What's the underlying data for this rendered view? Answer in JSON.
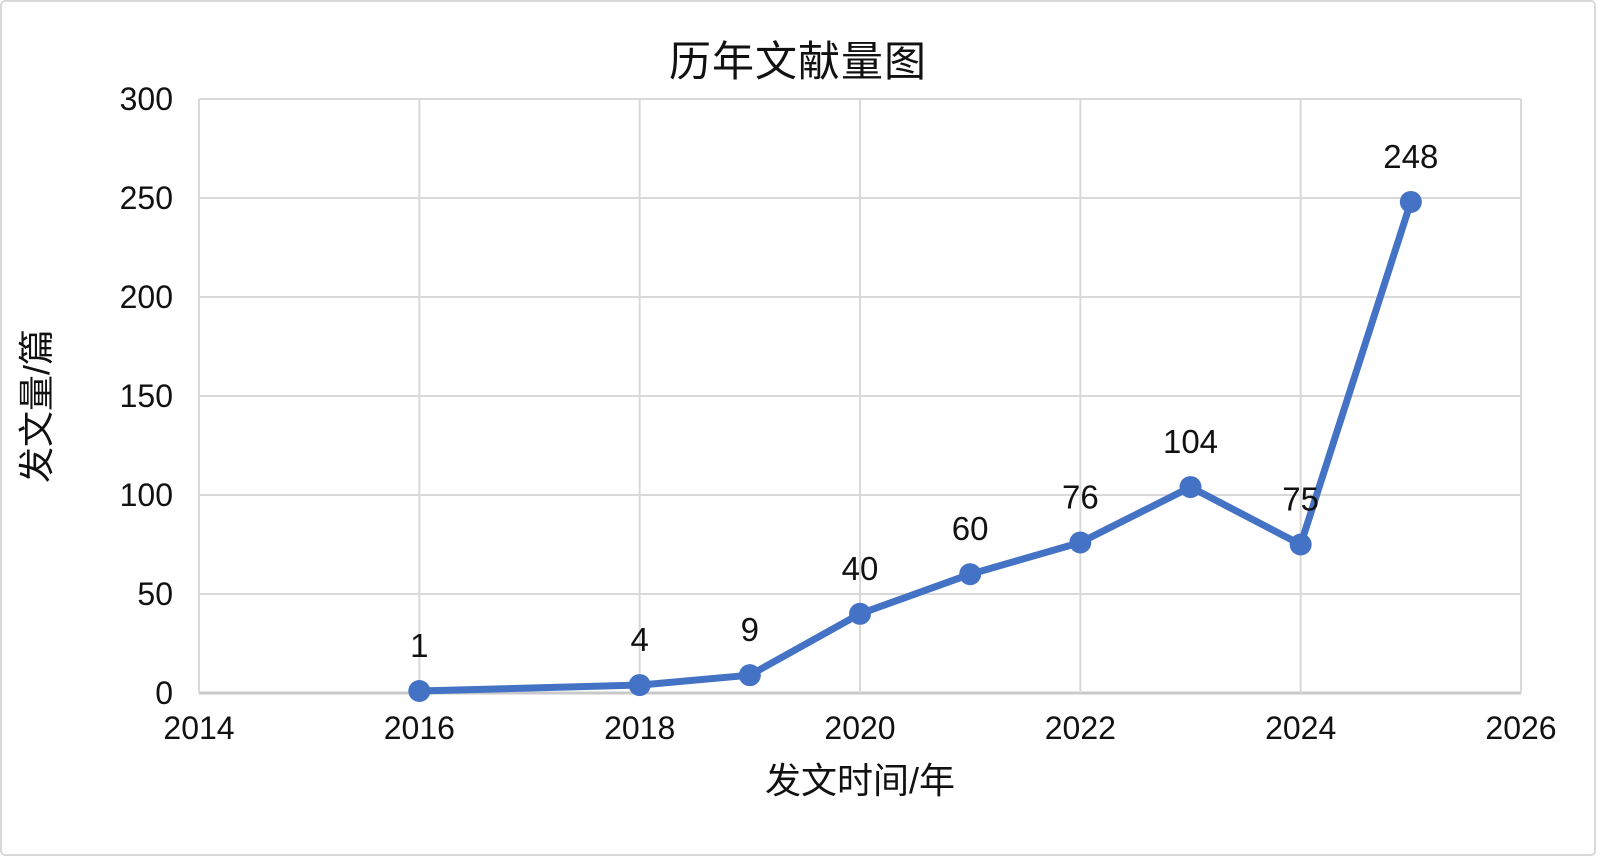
{
  "chart_data": {
    "type": "line",
    "title": "历年文献量图",
    "xlabel": "发文时间/年",
    "ylabel": "发文量/篇",
    "x": [
      2016,
      2018,
      2019,
      2020,
      2021,
      2022,
      2023,
      2024,
      2025
    ],
    "values": [
      1,
      4,
      9,
      40,
      60,
      76,
      104,
      75,
      248
    ],
    "data_labels": [
      "1",
      "4",
      "9",
      "40",
      "60",
      "76",
      "104",
      "75",
      "248"
    ],
    "xlim": [
      2014,
      2026
    ],
    "ylim": [
      0,
      300
    ],
    "xticks": [
      2014,
      2016,
      2018,
      2020,
      2022,
      2024,
      2026
    ],
    "yticks": [
      0,
      50,
      100,
      150,
      200,
      250,
      300
    ],
    "grid": true,
    "legend": "none",
    "series_color": "#4472C4",
    "gridline_color": "#D9D9D9",
    "axis_line_color": "#C9C9C9",
    "text_color": "#111111",
    "frame_border_color": "#D9D9D9",
    "background": "#FFFFFF",
    "marker": "circle"
  }
}
